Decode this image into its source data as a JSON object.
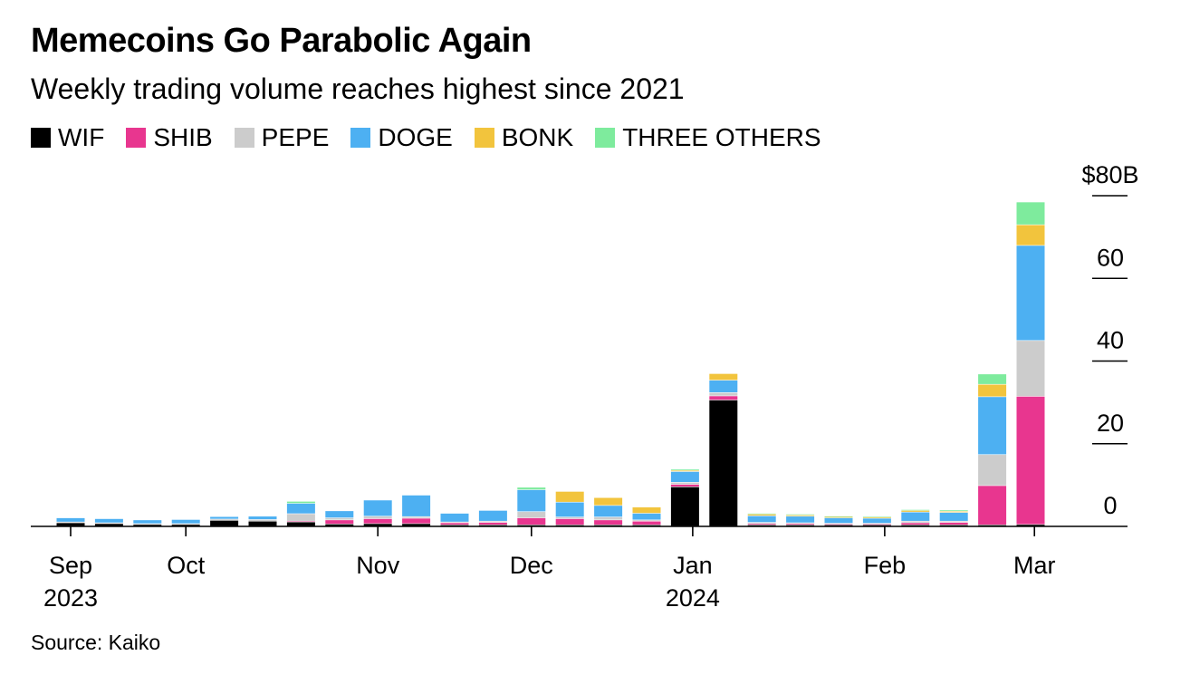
{
  "title": "Memecoins Go Parabolic Again",
  "subtitle": "Weekly trading volume reaches highest since 2021",
  "source": "Source: Kaiko",
  "colors": {
    "WIF": "#000000",
    "SHIB": "#e8368f",
    "PEPE": "#cccccc",
    "DOGE": "#4db0f2",
    "BONK": "#f2c43d",
    "THREE OTHERS": "#7eeb9d"
  },
  "legend": [
    {
      "name": "WIF",
      "color": "#000000"
    },
    {
      "name": "SHIB",
      "color": "#e8368f"
    },
    {
      "name": "PEPE",
      "color": "#cccccc"
    },
    {
      "name": "DOGE",
      "color": "#4db0f2"
    },
    {
      "name": "BONK",
      "color": "#f2c43d"
    },
    {
      "name": "THREE OTHERS",
      "color": "#7eeb9d"
    }
  ],
  "chart_data": {
    "type": "bar",
    "stacked": true,
    "title": "Memecoins Go Parabolic Again",
    "subtitle": "Weekly trading volume reaches highest since 2021",
    "xlabel": "",
    "ylabel": "",
    "ylim": [
      0,
      80
    ],
    "y_ticks": [
      "$80B",
      "60",
      "40",
      "20",
      "0"
    ],
    "y_tick_values": [
      80,
      60,
      40,
      20,
      0
    ],
    "x_tick_labels": [
      {
        "label": "Sep",
        "sub": "2023",
        "week": 0
      },
      {
        "label": "Oct",
        "sub": "",
        "week": 3
      },
      {
        "label": "Nov",
        "sub": "",
        "week": 8
      },
      {
        "label": "Dec",
        "sub": "",
        "week": 12
      },
      {
        "label": "Jan",
        "sub": "2024",
        "week": 16.2
      },
      {
        "label": "Feb",
        "sub": "",
        "week": 21.2
      },
      {
        "label": "Mar",
        "sub": "",
        "week": 25.1
      }
    ],
    "weeks": 26,
    "series": [
      {
        "name": "WIF",
        "values": [
          0.8,
          0.6,
          0.4,
          0.4,
          1.4,
          1.2,
          1,
          0.5,
          0.6,
          0.6,
          0.3,
          0.3,
          0.3,
          0.3,
          0.3,
          0.3,
          9.5,
          30.5,
          0.3,
          0.3,
          0.3,
          0.3,
          0.3,
          0.3,
          0.3,
          0.4
        ]
      },
      {
        "name": "SHIB",
        "values": [
          0,
          0,
          0,
          0,
          0,
          0,
          0.2,
          1,
          1.2,
          1.3,
          0.5,
          0.6,
          1.7,
          1.5,
          1.2,
          0.9,
          0.6,
          1,
          0.3,
          0.3,
          0.2,
          0.2,
          0.5,
          0.6,
          9.5,
          31
        ]
      },
      {
        "name": "PEPE",
        "values": [
          0.2,
          0.2,
          0.2,
          0.2,
          0.3,
          0.4,
          1.8,
          0.5,
          0.6,
          0.4,
          0.2,
          0.3,
          1.5,
          0.4,
          0.7,
          0.3,
          0.5,
          0.8,
          0.3,
          0.2,
          0.2,
          0.2,
          0.4,
          0.3,
          7.5,
          13.5
        ]
      },
      {
        "name": "DOGE",
        "values": [
          1,
          1,
          0.9,
          1,
          0.6,
          0.8,
          2.5,
          1.7,
          3.9,
          5.2,
          2.1,
          2.6,
          5.3,
          3.6,
          2.8,
          1.6,
          2.6,
          3,
          1.6,
          1.6,
          1.3,
          1.2,
          2.2,
          2.1,
          14,
          23
        ]
      },
      {
        "name": "BONK",
        "values": [
          0,
          0,
          0,
          0,
          0,
          0,
          0,
          0,
          0,
          0,
          0,
          0,
          0,
          2.6,
          1.9,
          1.5,
          0.3,
          1.6,
          0.4,
          0.3,
          0.3,
          0.3,
          0.4,
          0.3,
          3,
          5
        ]
      },
      {
        "name": "THREE OTHERS",
        "values": [
          0,
          0,
          0,
          0,
          0,
          0,
          0.5,
          0,
          0,
          0,
          0,
          0,
          0.6,
          0,
          0,
          0,
          0.3,
          0,
          0.2,
          0.2,
          0.1,
          0.2,
          0.2,
          0.3,
          2.5,
          5.5
        ]
      }
    ]
  }
}
